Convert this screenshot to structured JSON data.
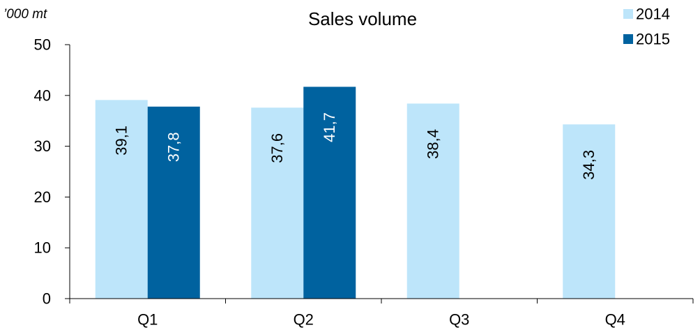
{
  "chart_data": {
    "type": "bar",
    "title": "Sales volume",
    "unit_label": "’000 mt",
    "categories": [
      "Q1",
      "Q2",
      "Q3",
      "Q4"
    ],
    "series": [
      {
        "name": "2014",
        "values": [
          39.1,
          37.6,
          38.4,
          34.3
        ],
        "labels": [
          "39,1",
          "37,6",
          "38,4",
          "34,3"
        ],
        "color": "#bde5fa",
        "label_color": "#000000"
      },
      {
        "name": "2015",
        "values": [
          37.8,
          41.7,
          null,
          null
        ],
        "labels": [
          "37,8",
          "41,7",
          "",
          ""
        ],
        "color": "#00629f",
        "label_color": "#ffffff"
      }
    ],
    "ylim": [
      0,
      50
    ],
    "yticks": [
      0,
      10,
      20,
      30,
      40,
      50
    ],
    "grid": false,
    "legend_position": "top-right"
  }
}
